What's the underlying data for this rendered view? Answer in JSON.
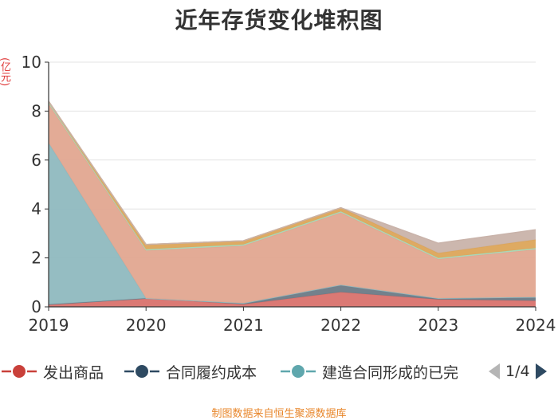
{
  "title": "近年存货变化堆积图",
  "unit_label": "(亿元)",
  "footer": "制图数据来自恒生聚源数据库",
  "legend": {
    "items": [
      {
        "label": "发出商品",
        "color": "#c9403a",
        "icon": "line-circle-icon"
      },
      {
        "label": "合同履约成本",
        "color": "#2e4a62",
        "icon": "line-circle-icon"
      },
      {
        "label": "建造合同形成的已完",
        "color": "#5fa7ad",
        "icon": "line-circle-icon"
      }
    ],
    "page": "1/4",
    "prev_icon": "triangle-left-icon",
    "next_icon": "triangle-right-icon"
  },
  "chart_data": {
    "type": "area",
    "stacked": true,
    "x": [
      "2019",
      "2020",
      "2021",
      "2022",
      "2023",
      "2024"
    ],
    "ylim": [
      0,
      10
    ],
    "yticks": [
      0,
      2,
      4,
      6,
      8,
      10
    ],
    "ylabel": "(亿元)",
    "grid": true,
    "legend_position": "bottom",
    "series": [
      {
        "name": "发出商品",
        "color": "#d9726d",
        "values": [
          0.1,
          0.35,
          0.1,
          0.6,
          0.3,
          0.25
        ]
      },
      {
        "name": "合同履约成本",
        "color": "#6b7a86",
        "values": [
          0.0,
          0.0,
          0.05,
          0.3,
          0.05,
          0.15
        ]
      },
      {
        "name": "建造合同形成的已完",
        "color": "#8fb9bf",
        "values": [
          6.6,
          0.0,
          0.0,
          0.0,
          0.0,
          0.0
        ]
      },
      {
        "color": "#e2a690",
        "values": [
          1.6,
          1.95,
          2.35,
          2.95,
          1.6,
          1.95
        ]
      },
      {
        "color": "#a8d8b9",
        "values": [
          0.05,
          0.05,
          0.05,
          0.05,
          0.05,
          0.05
        ]
      },
      {
        "color": "#dca55a",
        "values": [
          0.05,
          0.2,
          0.15,
          0.15,
          0.2,
          0.35
        ]
      },
      {
        "color": "#c9b3aa",
        "values": [
          0.0,
          0.0,
          0.0,
          0.0,
          0.4,
          0.4
        ]
      }
    ]
  }
}
